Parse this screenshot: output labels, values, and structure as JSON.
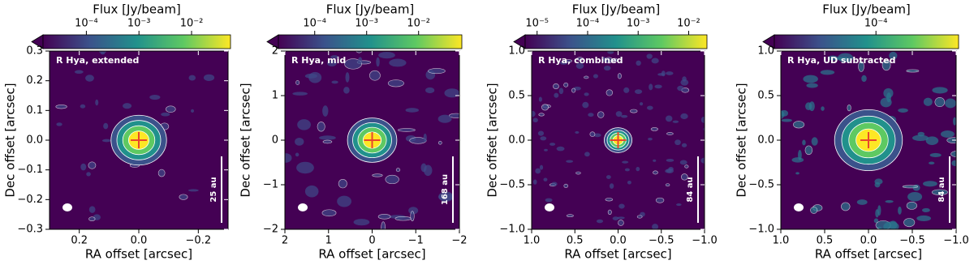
{
  "chart_data": [
    {
      "type": "image",
      "annotation": "R Hya, extended",
      "scale_label": "25 au",
      "xlabel": "RA offset [arcsec]",
      "ylabel": "Dec offset [arcsec]",
      "colorbar_label": "Flux [Jy/beam]",
      "clim": [
        1.5e-05,
        0.055
      ],
      "log_scale": true,
      "cticks": [
        {
          "value": 0.0001,
          "label": "10⁻⁴"
        },
        {
          "value": 0.001,
          "label": "10⁻³"
        },
        {
          "value": 0.01,
          "label": "10⁻²"
        }
      ],
      "xlim": [
        0.3,
        -0.3
      ],
      "xticks": [
        {
          "value": 0.2,
          "label": "0.2"
        },
        {
          "value": 0,
          "label": "0.0"
        },
        {
          "value": -0.2,
          "label": "−0.2"
        }
      ],
      "ylim": [
        -0.3,
        0.3
      ],
      "yticks": [
        {
          "value": -0.3,
          "label": "−0.3"
        },
        {
          "value": -0.2,
          "label": "−0.2"
        },
        {
          "value": -0.1,
          "label": "−0.1"
        },
        {
          "value": 0,
          "label": "0.0"
        },
        {
          "value": 0.1,
          "label": "0.1"
        },
        {
          "value": 0.2,
          "label": "0.2"
        },
        {
          "value": 0.3,
          "label": "0.3"
        }
      ]
    },
    {
      "type": "image",
      "annotation": "R Hya, mid",
      "scale_label": "168 au",
      "xlabel": "RA offset [arcsec]",
      "ylabel": "Dec offset [arcsec]",
      "colorbar_label": "Flux [Jy/beam]",
      "clim": [
        2e-05,
        0.068
      ],
      "log_scale": true,
      "cticks": [
        {
          "value": 0.0001,
          "label": "10⁻⁴"
        },
        {
          "value": 0.001,
          "label": "10⁻³"
        },
        {
          "value": 0.01,
          "label": "10⁻²"
        }
      ],
      "xlim": [
        2,
        -2
      ],
      "xticks": [
        2,
        1,
        0,
        {
          "value": -1,
          "label": "−1"
        },
        {
          "value": -2,
          "label": "−2"
        }
      ],
      "ylim": [
        -2,
        2
      ],
      "yticks": [
        {
          "value": -2,
          "label": "−2"
        },
        {
          "value": -1,
          "label": "−1"
        },
        0,
        1,
        2
      ]
    },
    {
      "type": "image",
      "annotation": "R Hya, combined",
      "scale_label": "84 au",
      "xlabel": "RA offset [arcsec]",
      "ylabel": "Dec offset [arcsec]",
      "colorbar_label": "Flux [Jy/beam]",
      "clim": [
        5.8e-06,
        0.023
      ],
      "log_scale": true,
      "cticks": [
        {
          "value": 1e-05,
          "label": "10⁻⁵"
        },
        {
          "value": 0.0001,
          "label": "10⁻⁴"
        },
        {
          "value": 0.001,
          "label": "10⁻³"
        },
        {
          "value": 0.01,
          "label": "10⁻²"
        }
      ],
      "xlim": [
        1,
        -1
      ],
      "xticks": [
        {
          "value": 1,
          "label": "1.0"
        },
        {
          "value": 0.5,
          "label": "0.5"
        },
        {
          "value": 0,
          "label": "0.0"
        },
        {
          "value": -0.5,
          "label": "−0.5"
        },
        {
          "value": -1,
          "label": "−1.0"
        }
      ],
      "ylim": [
        -1,
        1
      ],
      "yticks": [
        {
          "value": -1,
          "label": "−1.0"
        },
        {
          "value": -0.5,
          "label": "−0.5"
        },
        {
          "value": 0,
          "label": "0.0"
        },
        {
          "value": 0.5,
          "label": "0.5"
        },
        {
          "value": 1,
          "label": "1.0"
        }
      ]
    },
    {
      "type": "image",
      "annotation": "R Hya, UD subtracted",
      "scale_label": "84 au",
      "xlabel": "RA offset [arcsec]",
      "ylabel": "Dec offset [arcsec]",
      "colorbar_label": "Flux [Jy/beam]",
      "clim": [
        2e-05,
        0.00037
      ],
      "log_scale": true,
      "cticks": [
        {
          "value": 0.0001,
          "label": "10⁻⁴"
        }
      ],
      "xlim": [
        1,
        -1
      ],
      "xticks": [
        {
          "value": 1,
          "label": "1.0"
        },
        {
          "value": 0.5,
          "label": "0.5"
        },
        {
          "value": 0,
          "label": "0.0"
        },
        {
          "value": -0.5,
          "label": "−0.5"
        },
        {
          "value": -1,
          "label": "−1.0"
        }
      ],
      "ylim": [
        -1,
        1
      ],
      "yticks": [
        {
          "value": -1,
          "label": "−1.0"
        },
        {
          "value": -0.5,
          "label": "−0.5"
        },
        {
          "value": 0,
          "label": "0.0"
        },
        {
          "value": 0.5,
          "label": "0.5"
        },
        {
          "value": 1,
          "label": "1.0"
        }
      ]
    }
  ]
}
